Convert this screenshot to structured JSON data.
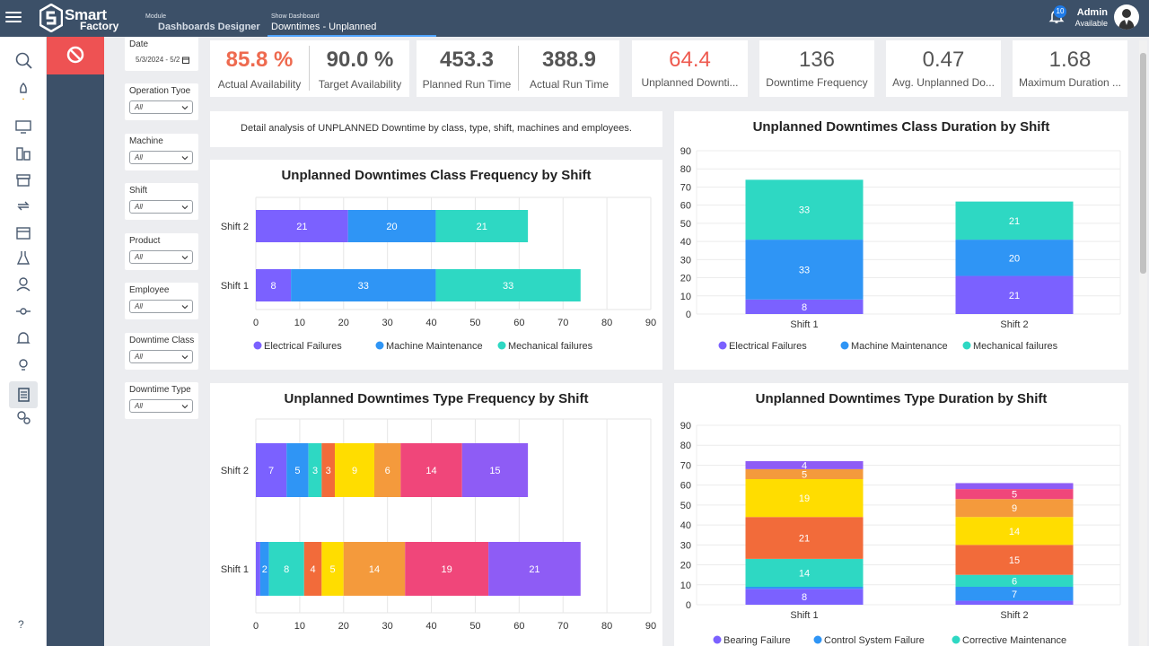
{
  "header": {
    "logo_line1": "Smart",
    "logo_line2": "Factory",
    "module_key": "Module",
    "module_value": "Dashboards Designer",
    "show_key": "Show Dashboard",
    "show_value": "Downtimes - Unplanned",
    "notifications": "10",
    "user_name": "Admin",
    "user_status": "Available"
  },
  "rail_icons": [
    "search-icon",
    "rocket-icon",
    "monitor-icon",
    "buildings-icon",
    "archive-icon",
    "refresh-icon",
    "calendar-icon",
    "flask-icon",
    "user-icon",
    "commit-icon",
    "bell-icon",
    "lightbulb-icon",
    "report-icon",
    "settings-icon"
  ],
  "rail_help": "?",
  "filters": [
    {
      "label": "Date",
      "value": "5/3/2024 - 5/2"
    },
    {
      "label": "Operation Tyoe",
      "value": "All"
    },
    {
      "label": "Machine",
      "value": "All"
    },
    {
      "label": "Shift",
      "value": "All"
    },
    {
      "label": "Product",
      "value": "All"
    },
    {
      "label": "Employee",
      "value": "All"
    },
    {
      "label": "Downtime Class",
      "value": "All"
    },
    {
      "label": "Downtime Type",
      "value": "All"
    }
  ],
  "kpis": {
    "actual_availability": {
      "value": "85.8 %",
      "label": "Actual Availability"
    },
    "target_availability": {
      "value": "90.0 %",
      "label": "Target Availability"
    },
    "planned_run_time": {
      "value": "453.3",
      "label": "Planned Run Time"
    },
    "actual_run_time": {
      "value": "388.9",
      "label": "Actual Run Time"
    },
    "unplanned_downtime": {
      "value": "64.4",
      "label": "Unplanned Downti..."
    },
    "downtime_frequency": {
      "value": "136",
      "label": "Downtime Frequency"
    },
    "avg_unplanned": {
      "value": "0.47",
      "label": "Avg. Unplanned Do..."
    },
    "max_duration": {
      "value": "1.68",
      "label": "Maximum Duration ..."
    }
  },
  "description": "Detail analysis of UNPLANNED Downtime by class, type, shift, machines and employees.",
  "colors": {
    "red_value": "#ee5a4f",
    "electrical": "#7b61ff",
    "maintenance": "#2f95f5",
    "mechanical": "#2ed8c3"
  },
  "chart_data": [
    {
      "type": "bar",
      "orientation": "horizontal",
      "stacked": true,
      "title": "Unplanned Downtimes Class Frequency by Shift",
      "categories": [
        "Shift 2",
        "Shift 1"
      ],
      "xlim": [
        0,
        90
      ],
      "xticks": [
        "0",
        "10",
        "20",
        "30",
        "40",
        "50",
        "60",
        "70",
        "80",
        "90"
      ],
      "legend": "bottom",
      "series": [
        {
          "name": "Electrical Failures",
          "color": "#7b61ff",
          "values": [
            21,
            8
          ]
        },
        {
          "name": "Machine Maintenance",
          "color": "#2f95f5",
          "values": [
            20,
            33
          ]
        },
        {
          "name": "Mechanical failures",
          "color": "#2ed8c3",
          "values": [
            21,
            33
          ]
        }
      ]
    },
    {
      "type": "bar",
      "orientation": "vertical",
      "stacked": true,
      "title": "Unplanned Downtimes Class Duration by Shift",
      "categories": [
        "Shift 1",
        "Shift 2"
      ],
      "ylim": [
        0,
        90
      ],
      "yticks": [
        "0",
        "10",
        "20",
        "30",
        "40",
        "50",
        "60",
        "70",
        "80",
        "90"
      ],
      "legend": "bottom",
      "series": [
        {
          "name": "Electrical Failures",
          "color": "#7b61ff",
          "values": [
            8,
            21
          ]
        },
        {
          "name": "Machine Maintenance",
          "color": "#2f95f5",
          "values": [
            33,
            20
          ]
        },
        {
          "name": "Mechanical failures",
          "color": "#2ed8c3",
          "values": [
            33,
            21
          ]
        }
      ]
    },
    {
      "type": "bar",
      "orientation": "horizontal",
      "stacked": true,
      "title": "Unplanned Downtimes Type Frequency by Shift",
      "categories": [
        "Shift 2",
        "Shift 1"
      ],
      "xlim": [
        0,
        90
      ],
      "xticks": [
        "0",
        "10",
        "20",
        "30",
        "40",
        "50",
        "60",
        "70",
        "80",
        "90"
      ],
      "legend": "bottom",
      "series": [
        {
          "name": "",
          "color": "#7b61ff",
          "values": [
            7,
            1
          ]
        },
        {
          "name": "",
          "color": "#2f95f5",
          "values": [
            5,
            2
          ]
        },
        {
          "name": "",
          "color": "#2ed8c3",
          "values": [
            3,
            8
          ]
        },
        {
          "name": "",
          "color": "#f26b3a",
          "values": [
            3,
            4
          ]
        },
        {
          "name": "",
          "color": "#ffdd00",
          "values": [
            9,
            5
          ]
        },
        {
          "name": "",
          "color": "#f49a3c",
          "values": [
            6,
            14
          ]
        },
        {
          "name": "",
          "color": "#f0467a",
          "values": [
            14,
            19
          ]
        },
        {
          "name": "",
          "color": "#8e5cf5",
          "values": [
            15,
            21
          ]
        }
      ]
    },
    {
      "type": "bar",
      "orientation": "vertical",
      "stacked": true,
      "title": "Unplanned Downtimes Type Duration by Shift",
      "categories": [
        "Shift 1",
        "Shift 2"
      ],
      "ylim": [
        0,
        90
      ],
      "yticks": [
        "0",
        "10",
        "20",
        "30",
        "40",
        "50",
        "60",
        "70",
        "80",
        "90"
      ],
      "legend": "bottom",
      "series": [
        {
          "name": "Bearing Failure",
          "color": "#7b61ff",
          "values": [
            8,
            2
          ]
        },
        {
          "name": "Control System Failure",
          "color": "#2f95f5",
          "values": [
            1,
            7
          ]
        },
        {
          "name": "Corrective Maintenance",
          "color": "#2ed8c3",
          "values": [
            14,
            6
          ]
        },
        {
          "name": "",
          "color": "#f26b3a",
          "values": [
            21,
            15
          ]
        },
        {
          "name": "",
          "color": "#ffdd00",
          "values": [
            19,
            14
          ]
        },
        {
          "name": "",
          "color": "#f49a3c",
          "values": [
            5,
            9
          ]
        },
        {
          "name": "",
          "color": "#f0467a",
          "values": [
            0,
            5
          ]
        },
        {
          "name": "",
          "color": "#8e5cf5",
          "values": [
            4,
            3
          ]
        }
      ]
    }
  ]
}
